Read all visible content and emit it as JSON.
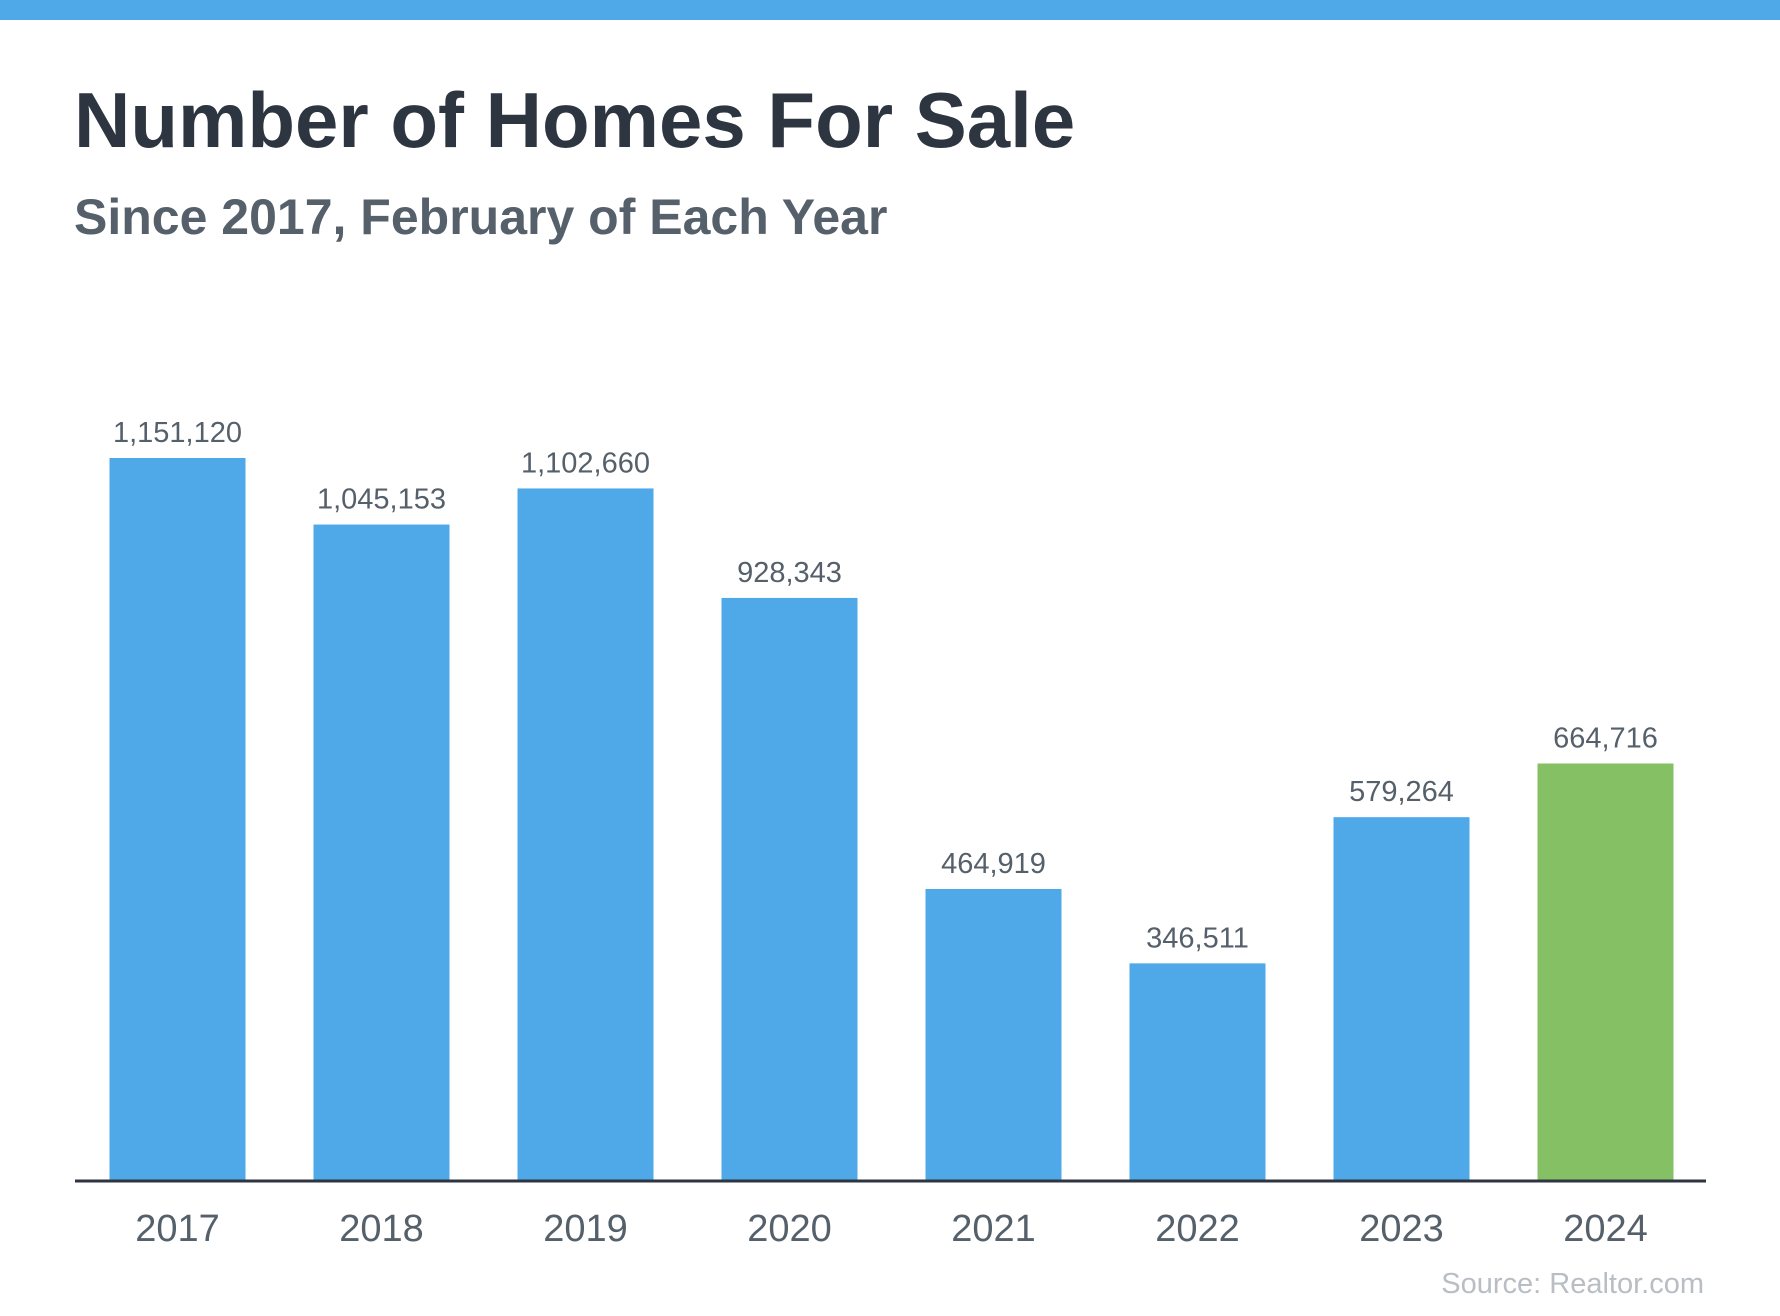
{
  "header": {
    "title": "Number of Homes For Sale",
    "subtitle": "Since 2017, February of Each Year"
  },
  "source": "Source: Realtor.com",
  "colors": {
    "top_bar": "#4fa9e8",
    "bar_default": "#4fa9e8",
    "bar_highlight": "#86c064",
    "axis": "#2d3540",
    "value_label": "#55606b",
    "tick_label": "#55606b"
  },
  "chart_data": {
    "type": "bar",
    "title": "Number of Homes For Sale",
    "subtitle": "Since 2017, February of Each Year",
    "xlabel": "",
    "ylabel": "",
    "categories": [
      "2017",
      "2018",
      "2019",
      "2020",
      "2021",
      "2022",
      "2023",
      "2024"
    ],
    "values": [
      1151120,
      1045153,
      1102660,
      928343,
      464919,
      346511,
      579264,
      664716
    ],
    "value_labels": [
      "1,151,120",
      "1,045,153",
      "1,102,660",
      "928,343",
      "464,919",
      "346,511",
      "579,264",
      "664,716"
    ],
    "highlighted_category": "2024",
    "ylim": [
      0,
      1151120
    ],
    "grid": false,
    "legend": "none"
  }
}
